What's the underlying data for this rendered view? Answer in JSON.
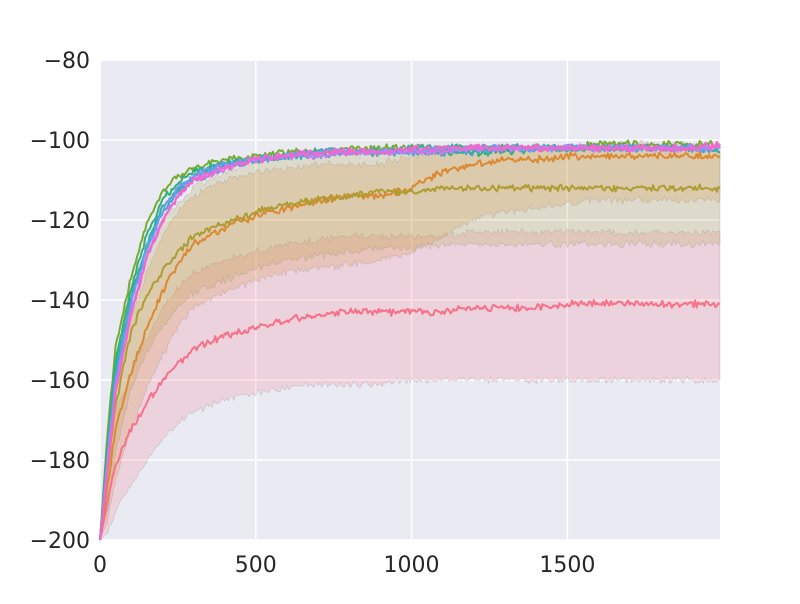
{
  "chart_data": {
    "type": "line",
    "title": "",
    "xlabel": "",
    "ylabel": "",
    "xlim": [
      0,
      1990
    ],
    "ylim": [
      -200,
      -80
    ],
    "xticks": [
      0,
      500,
      1000,
      1500
    ],
    "yticks": [
      -200,
      -180,
      -160,
      -140,
      -120,
      -100,
      -80
    ],
    "xtick_labels": [
      "0",
      "500",
      "1000",
      "1500"
    ],
    "ytick_labels": [
      "−200",
      "−180",
      "−160",
      "−140",
      "−120",
      "−100",
      "−80"
    ],
    "grid": true,
    "legend": "none",
    "x": [
      0,
      25,
      50,
      100,
      150,
      200,
      250,
      300,
      400,
      500,
      600,
      700,
      800,
      900,
      1000,
      1100,
      1200,
      1300,
      1400,
      1500,
      1600,
      1700,
      1800,
      1900,
      1990
    ],
    "series": [
      {
        "color": "#f77189",
        "values": [
          -200,
          -190,
          -181,
          -172,
          -166,
          -160,
          -156,
          -152,
          -149,
          -147,
          -145,
          -144,
          -143,
          -143,
          -143,
          -143,
          -142,
          -142,
          -142,
          -141,
          -141,
          -141,
          -141,
          -141,
          -141
        ],
        "band": [
          [
            -200,
            -200
          ],
          [
            -198,
            -180
          ],
          [
            -193,
            -168
          ],
          [
            -186,
            -158
          ],
          [
            -180,
            -150
          ],
          [
            -175,
            -142
          ],
          [
            -171,
            -137
          ],
          [
            -168,
            -133
          ],
          [
            -165,
            -130
          ],
          [
            -163,
            -128
          ],
          [
            -162,
            -126
          ],
          [
            -161,
            -125
          ],
          [
            -161,
            -124
          ],
          [
            -161,
            -124
          ],
          [
            -160,
            -124
          ],
          [
            -160,
            -124
          ],
          [
            -160,
            -123
          ],
          [
            -160,
            -123
          ],
          [
            -160,
            -123
          ],
          [
            -160,
            -123
          ],
          [
            -160,
            -123
          ],
          [
            -160,
            -123
          ],
          [
            -160,
            -123
          ],
          [
            -160,
            -123
          ],
          [
            -160,
            -123
          ]
        ]
      },
      {
        "color": "#dc8932",
        "values": [
          -200,
          -186,
          -172,
          -158,
          -147,
          -138,
          -131,
          -126,
          -122,
          -119,
          -117,
          -115,
          -114,
          -114,
          -112,
          -108,
          -106,
          -105,
          -105,
          -104,
          -104,
          -104,
          -104,
          -104,
          -104
        ],
        "band": [
          [
            -200,
            -200
          ],
          [
            -195,
            -176
          ],
          [
            -185,
            -160
          ],
          [
            -172,
            -145
          ],
          [
            -162,
            -133
          ],
          [
            -154,
            -124
          ],
          [
            -147,
            -118
          ],
          [
            -142,
            -114
          ],
          [
            -138,
            -110
          ],
          [
            -135,
            -108
          ],
          [
            -133,
            -107
          ],
          [
            -132,
            -106
          ],
          [
            -131,
            -106
          ],
          [
            -130,
            -106
          ],
          [
            -128,
            -104
          ],
          [
            -124,
            -103
          ],
          [
            -120,
            -102
          ],
          [
            -118,
            -102
          ],
          [
            -117,
            -102
          ],
          [
            -116,
            -102
          ],
          [
            -115,
            -101
          ],
          [
            -115,
            -101
          ],
          [
            -115,
            -101
          ],
          [
            -115,
            -101
          ],
          [
            -115,
            -101
          ]
        ]
      },
      {
        "color": "#ae9d31",
        "values": [
          -200,
          -182,
          -166,
          -148,
          -139,
          -133,
          -128,
          -124,
          -121,
          -118,
          -116,
          -115,
          -114,
          -113,
          -113,
          -112,
          -112,
          -112,
          -112,
          -112,
          -112,
          -112,
          -112,
          -112,
          -112
        ],
        "band": [
          [
            -200,
            -200
          ],
          [
            -192,
            -172
          ],
          [
            -178,
            -154
          ],
          [
            -162,
            -136
          ],
          [
            -153,
            -127
          ],
          [
            -147,
            -120
          ],
          [
            -142,
            -116
          ],
          [
            -138,
            -112
          ],
          [
            -135,
            -108
          ],
          [
            -132,
            -105
          ],
          [
            -130,
            -104
          ],
          [
            -129,
            -103
          ],
          [
            -128,
            -103
          ],
          [
            -127,
            -102
          ],
          [
            -127,
            -102
          ],
          [
            -126,
            -102
          ],
          [
            -126,
            -102
          ],
          [
            -126,
            -102
          ],
          [
            -126,
            -102
          ],
          [
            -126,
            -102
          ],
          [
            -126,
            -102
          ],
          [
            -126,
            -102
          ],
          [
            -126,
            -102
          ],
          [
            -126,
            -102
          ],
          [
            -126,
            -102
          ]
        ]
      },
      {
        "color": "#77ab31",
        "values": [
          -200,
          -172,
          -152,
          -134,
          -121,
          -113,
          -109,
          -107,
          -105,
          -104,
          -103,
          -103,
          -102,
          -102,
          -102,
          -102,
          -102,
          -102,
          -102,
          -102,
          -101,
          -101,
          -101,
          -101,
          -101
        ]
      },
      {
        "color": "#33b07a",
        "values": [
          -200,
          -175,
          -155,
          -137,
          -124,
          -115,
          -111,
          -108,
          -106,
          -105,
          -104,
          -103,
          -103,
          -103,
          -103,
          -103,
          -103,
          -103,
          -102,
          -102,
          -102,
          -102,
          -102,
          -102,
          -102
        ]
      },
      {
        "color": "#36ada4",
        "values": [
          -200,
          -177,
          -157,
          -139,
          -126,
          -117,
          -112,
          -109,
          -106,
          -105,
          -104,
          -103,
          -103,
          -103,
          -102,
          -102,
          -102,
          -102,
          -102,
          -102,
          -102,
          -102,
          -102,
          -102,
          -103
        ]
      },
      {
        "color": "#38a9c5",
        "values": [
          -200,
          -178,
          -159,
          -140,
          -127,
          -118,
          -113,
          -110,
          -107,
          -105,
          -104,
          -104,
          -103,
          -103,
          -103,
          -103,
          -103,
          -102,
          -102,
          -102,
          -102,
          -102,
          -102,
          -102,
          -102
        ]
      },
      {
        "color": "#6e9bf4",
        "values": [
          -200,
          -179,
          -160,
          -141,
          -127,
          -118,
          -112,
          -109,
          -106,
          -105,
          -104,
          -103,
          -103,
          -103,
          -103,
          -102,
          -102,
          -102,
          -102,
          -102,
          -102,
          -102,
          -102,
          -102,
          -102
        ]
      },
      {
        "color": "#cc7af4",
        "values": [
          -200,
          -181,
          -162,
          -143,
          -129,
          -120,
          -114,
          -110,
          -107,
          -105,
          -104,
          -104,
          -103,
          -103,
          -103,
          -103,
          -102,
          -102,
          -102,
          -102,
          -102,
          -102,
          -102,
          -102,
          -102
        ]
      },
      {
        "color": "#f565cc",
        "values": [
          -200,
          -182,
          -163,
          -144,
          -130,
          -120,
          -114,
          -110,
          -107,
          -105,
          -104,
          -103,
          -103,
          -103,
          -102,
          -102,
          -102,
          -102,
          -102,
          -102,
          -102,
          -102,
          -102,
          -102,
          -101
        ]
      }
    ]
  }
}
